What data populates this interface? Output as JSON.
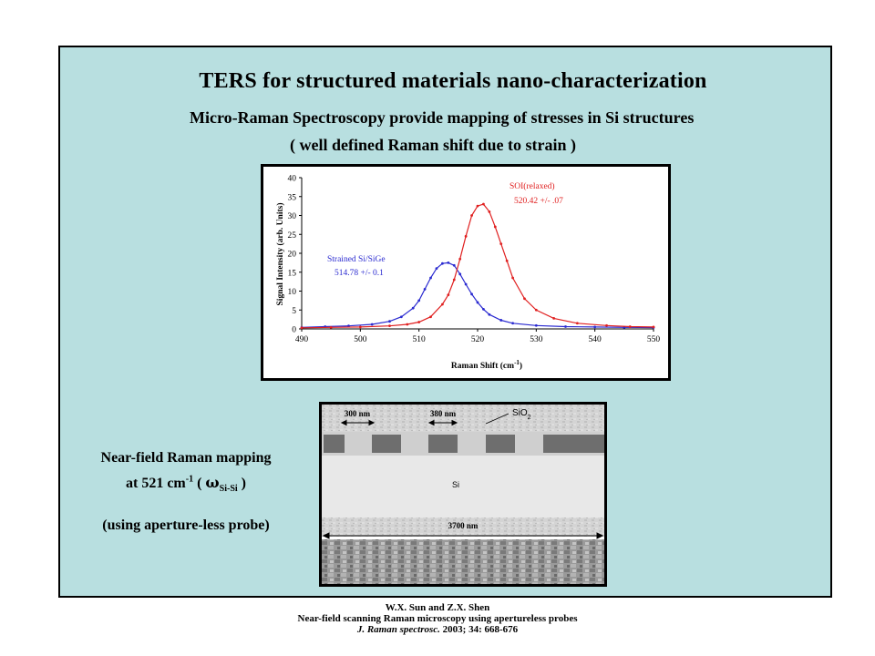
{
  "slide": {
    "title": "TERS for structured materials nano-characterization",
    "subtitle_line1": "Micro-Raman Spectroscopy provide mapping of stresses in Si structures",
    "subtitle_line2": "( well defined Raman shift due to strain )"
  },
  "chart_data": {
    "type": "line",
    "xlabel": "Raman Shift (cm",
    "xlabel_sup": "-1",
    "xlabel_close": ")",
    "ylabel": "Signal Intensity (arb. Units)",
    "xlim": [
      490,
      550
    ],
    "ylim": [
      0,
      40
    ],
    "xticks": [
      "490",
      "500",
      "510",
      "520",
      "530",
      "540",
      "550"
    ],
    "yticks": [
      "0",
      "5",
      "10",
      "15",
      "20",
      "25",
      "30",
      "35",
      "40"
    ],
    "series": [
      {
        "name": "Strained Si/SiGe",
        "annotation": "514.78 +/- 0.1",
        "color": "#2a2ad0",
        "x": [
          490,
          494,
          498,
          502,
          505,
          507,
          509,
          510,
          511,
          512,
          513,
          514,
          515,
          516,
          517,
          518,
          519,
          520,
          521,
          522,
          524,
          526,
          530,
          535,
          540,
          545,
          550
        ],
        "y": [
          0.4,
          0.6,
          0.8,
          1.2,
          2.0,
          3.2,
          5.5,
          7.5,
          10.5,
          13.5,
          16.0,
          17.3,
          17.5,
          16.8,
          14.5,
          11.8,
          9.2,
          7.0,
          5.2,
          3.8,
          2.3,
          1.5,
          0.9,
          0.6,
          0.5,
          0.4,
          0.35
        ]
      },
      {
        "name": "SOI(relaxed)",
        "annotation": "520.42 +/- .07",
        "color": "#e02020",
        "x": [
          490,
          495,
          500,
          505,
          508,
          510,
          512,
          514,
          515,
          516,
          517,
          518,
          519,
          520,
          521,
          522,
          523,
          524,
          525,
          526,
          528,
          530,
          533,
          537,
          542,
          546,
          550
        ],
        "y": [
          0.3,
          0.4,
          0.5,
          0.8,
          1.2,
          1.8,
          3.2,
          6.5,
          9.0,
          13.0,
          18.5,
          24.5,
          30.0,
          32.5,
          33.0,
          31.0,
          27.0,
          22.5,
          18.0,
          13.5,
          8.0,
          5.0,
          2.8,
          1.5,
          0.9,
          0.6,
          0.5
        ]
      }
    ]
  },
  "figure": {
    "label_300": "300 nm",
    "label_380": "380 nm",
    "label_sio2": "SiO",
    "label_sio2_sub": "2",
    "label_si": "Si",
    "label_3700": "3700 nm"
  },
  "caption": {
    "line1": "Near-field Raman mapping",
    "line2_pre": "at 521 cm",
    "line2_sup": "-1",
    "line2_mid": " ( ",
    "omega": "ω",
    "line2_sub": "Si-Si",
    "line2_end": " )",
    "line3": "(using aperture-less probe)"
  },
  "footer": {
    "authors": "W.X. Sun and Z.X. Shen",
    "paper": "Near-field scanning Raman microscopy using apertureless probes",
    "journal": "J. Raman spectrosc.",
    "ref": " 2003; 34: 668-676"
  }
}
